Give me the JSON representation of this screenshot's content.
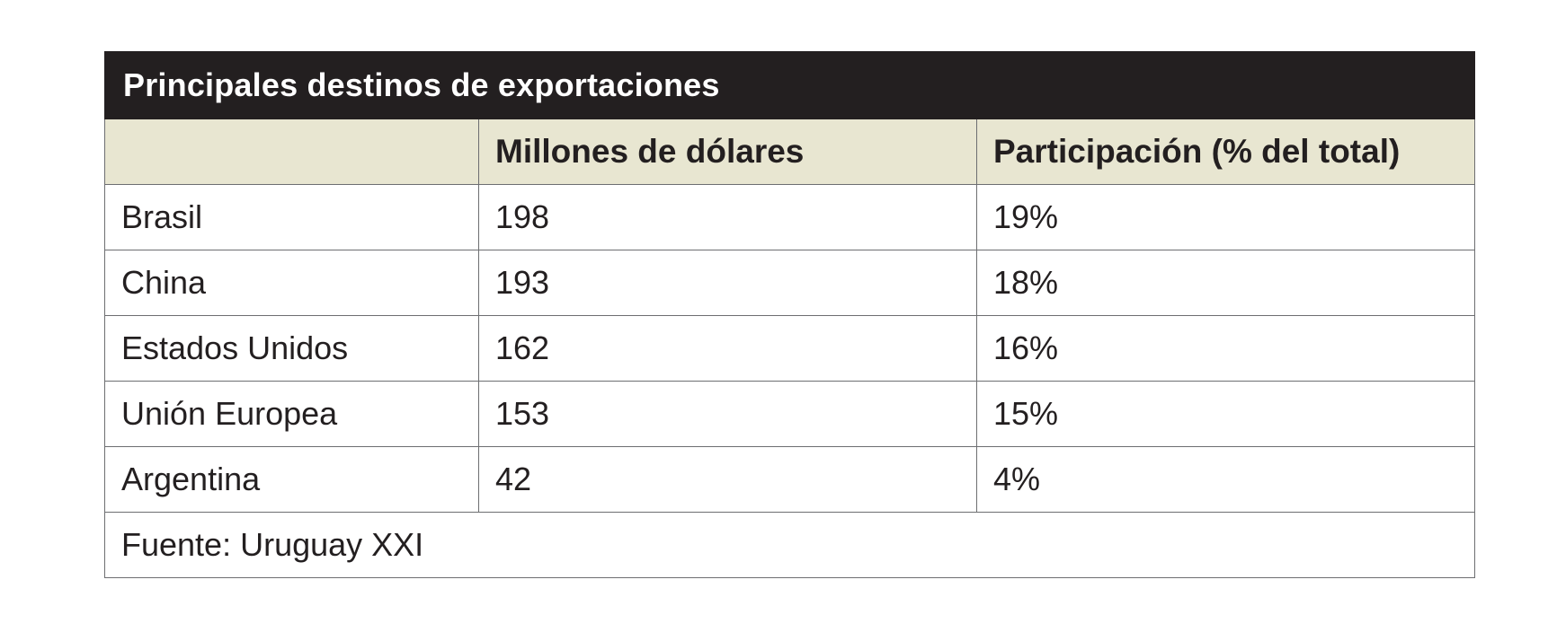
{
  "chart_data": {
    "type": "table",
    "title": "Principales destinos de exportaciones",
    "columns": [
      "",
      "Millones de dólares",
      "Participación (% del total)"
    ],
    "rows": [
      {
        "destination": "Brasil",
        "value": "198",
        "share": "19%"
      },
      {
        "destination": "China",
        "value": "193",
        "share": "18%"
      },
      {
        "destination": "Estados Unidos",
        "value": "162",
        "share": "16%"
      },
      {
        "destination": "Unión Europea",
        "value": "153",
        "share": "15%"
      },
      {
        "destination": "Argentina",
        "value": "42",
        "share": "4%"
      }
    ],
    "source": "Fuente: Uruguay XXI"
  },
  "colors": {
    "title_background": "#231f20",
    "header_background": "#e8e6d1",
    "border": "#6d6e71"
  }
}
